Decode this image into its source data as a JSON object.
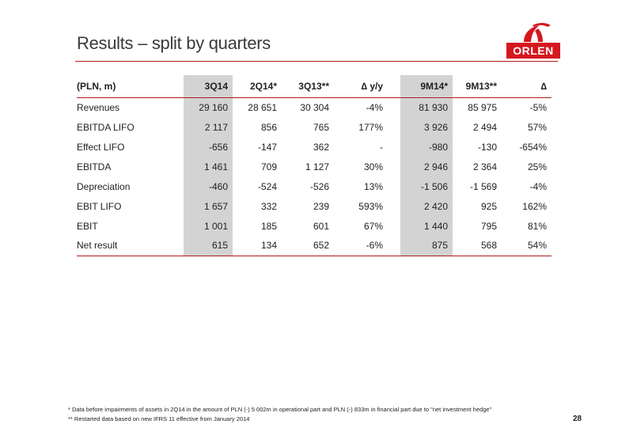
{
  "title": "Results – split by quarters",
  "logo": {
    "text": "ORLEN",
    "brand_color": "#d5171f"
  },
  "table": {
    "headers": [
      "(PLN, m)",
      "3Q14",
      "2Q14*",
      "3Q13**",
      "∆ y/y",
      "9M14*",
      "9M13**",
      "∆"
    ],
    "rows": [
      [
        "Revenues",
        "29 160",
        "28 651",
        "30 304",
        "-4%",
        "81 930",
        "85 975",
        "-5%"
      ],
      [
        "EBITDA LIFO",
        "2 117",
        "856",
        "765",
        "177%",
        "3 926",
        "2 494",
        "57%"
      ],
      [
        "Effect LIFO",
        "-656",
        "-147",
        "362",
        "-",
        "-980",
        "-130",
        "-654%"
      ],
      [
        "EBITDA",
        "1 461",
        "709",
        "1 127",
        "30%",
        "2 946",
        "2 364",
        "25%"
      ],
      [
        "Depreciation",
        "-460",
        "-524",
        "-526",
        "13%",
        "-1 506",
        "-1 569",
        "-4%"
      ],
      [
        "EBIT LIFO",
        "1 657",
        "332",
        "239",
        "593%",
        "2 420",
        "925",
        "162%"
      ],
      [
        "EBIT",
        "1 001",
        "185",
        "601",
        "67%",
        "1 440",
        "795",
        "81%"
      ],
      [
        "Net result",
        "615",
        "134",
        "652",
        "-6%",
        "875",
        "568",
        "54%"
      ]
    ]
  },
  "footnotes": [
    "* Data before impairments of assets in 2Q14 in the amount of PLN (-) 5 002m in operational part and PLN (-) 833m in financial part due to \"net investment hedge\"",
    "** Restarted data based on new IFRS 11 effective from January 2014"
  ],
  "page_number": "28"
}
